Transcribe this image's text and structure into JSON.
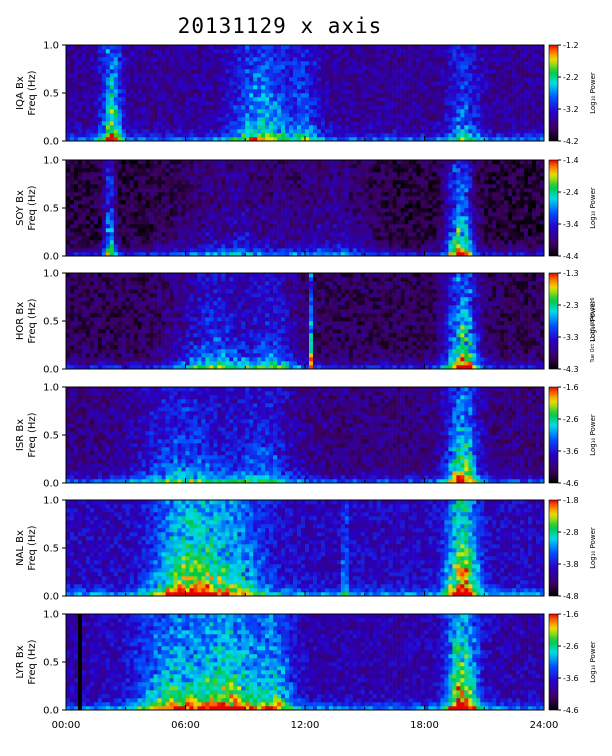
{
  "page_title": "20131129 x axis",
  "stamp_text": "Tue Oct 11 15:08:45 2016",
  "chart_data": {
    "type": "heatmap",
    "title": "20131129 x axis",
    "x_ticks": [
      "00:00",
      "06:00",
      "12:00",
      "18:00",
      "24:00"
    ],
    "x_range": [
      0,
      24
    ],
    "y_range": [
      0.0,
      1.0
    ],
    "y_ticks": [
      "0.0",
      "0.5",
      "1.0"
    ],
    "colorbar_label": "Log₁₀ Power",
    "panels": [
      {
        "station": "IQA Bx",
        "ylabel2": "Freq (Hz)",
        "cbar_ticks": [
          "-1.2",
          "-2.2",
          "-3.2",
          "-4.2"
        ],
        "background": 0.22,
        "bands": [
          [
            2.3,
            0.5,
            0.6
          ],
          [
            9.8,
            1.5,
            0.45
          ],
          [
            20.0,
            0.8,
            0.3
          ],
          [
            12.0,
            0.8,
            0.25
          ]
        ]
      },
      {
        "station": "SOY Bx",
        "ylabel2": "Freq (Hz)",
        "cbar_ticks": [
          "-1.4",
          "-2.4",
          "-3.4",
          "-4.4"
        ],
        "background": 0.08,
        "bands": [
          [
            2.2,
            0.3,
            0.6
          ],
          [
            19.8,
            0.7,
            0.75
          ],
          [
            8.5,
            3.0,
            0.25
          ],
          [
            13.5,
            2.0,
            0.2
          ]
        ]
      },
      {
        "station": "HOR Bx",
        "ylabel2": "Freq (Hz)",
        "cbar_ticks": [
          "-1.3",
          "-2.3",
          "-3.3",
          "-4.3"
        ],
        "background": 0.12,
        "bands": [
          [
            19.9,
            0.8,
            0.8
          ],
          [
            7.5,
            2.0,
            0.4
          ],
          [
            10.5,
            1.2,
            0.35
          ],
          [
            12.3,
            0.1,
            0.7
          ]
        ]
      },
      {
        "station": "ISR Bx",
        "ylabel2": "Freq (Hz)",
        "cbar_ticks": [
          "-1.6",
          "-2.6",
          "-3.6",
          "-4.6"
        ],
        "background": 0.18,
        "bands": [
          [
            19.9,
            0.8,
            0.7
          ],
          [
            6.0,
            2.5,
            0.35
          ],
          [
            10.0,
            1.5,
            0.3
          ]
        ]
      },
      {
        "station": "NAL Bx",
        "ylabel2": "Freq (Hz)",
        "cbar_ticks": [
          "-1.8",
          "-2.8",
          "-3.8",
          "-4.8"
        ],
        "background": 0.28,
        "bands": [
          [
            19.9,
            0.8,
            0.75
          ],
          [
            5.8,
            1.5,
            0.5
          ],
          [
            8.0,
            2.0,
            0.45
          ],
          [
            14.0,
            0.1,
            0.6
          ]
        ]
      },
      {
        "station": "LYR Bx",
        "ylabel2": "Freq (Hz)",
        "cbar_ticks": [
          "-1.6",
          "-2.6",
          "-3.6",
          "-4.6"
        ],
        "background": 0.25,
        "bands": [
          [
            19.9,
            0.8,
            0.75
          ],
          [
            5.5,
            2.0,
            0.5
          ],
          [
            8.3,
            1.5,
            0.55
          ],
          [
            10.5,
            1.0,
            0.4
          ]
        ],
        "gap": [
          0.55,
          0.75
        ]
      }
    ]
  }
}
